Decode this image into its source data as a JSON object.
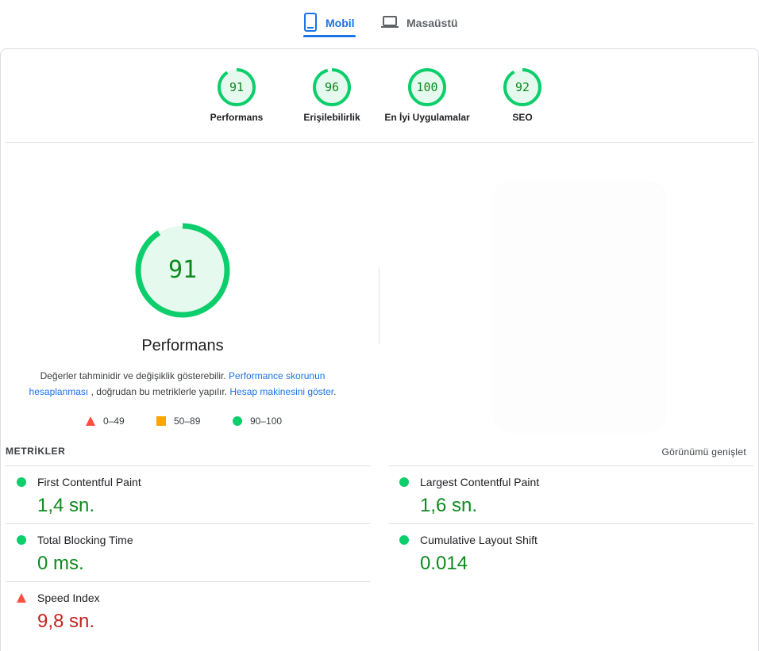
{
  "tabs": {
    "mobile": {
      "label": "Mobil",
      "icon": "mobile-phone-icon",
      "active": true
    },
    "desktop": {
      "label": "Masaüstü",
      "icon": "laptop-icon",
      "active": false
    }
  },
  "categories": [
    {
      "label": "Performans",
      "score": "91",
      "fraction": 0.91
    },
    {
      "label": "Erişilebilirlik",
      "score": "96",
      "fraction": 0.96
    },
    {
      "label": "En İyi Uygulamalar",
      "score": "100",
      "fraction": 1.0
    },
    {
      "label": "SEO",
      "score": "92",
      "fraction": 0.92
    }
  ],
  "main": {
    "score": "91",
    "fraction": 0.91,
    "title": "Performans",
    "desc_before": "Değerler tahminidir ve değişiklik gösterebilir.",
    "link1": "Performance skorunun hesaplanması",
    "desc_middle": ", doğrudan bu metriklerle yapılır.",
    "link2": "Hesap makinesini göster",
    "desc_end": "."
  },
  "legend": {
    "bad": "0–49",
    "average": "50–89",
    "good": "90–100"
  },
  "metrics": {
    "title": "METRİKLER",
    "expand": "Görünümü genişlet",
    "fcp": {
      "label": "First Contentful Paint",
      "value": "1,4 sn.",
      "status": "good"
    },
    "lcp": {
      "label": "Largest Contentful Paint",
      "value": "1,6 sn.",
      "status": "good"
    },
    "tbt": {
      "label": "Total Blocking Time",
      "value": "0 ms.",
      "status": "good"
    },
    "cls": {
      "label": "Cumulative Layout Shift",
      "value": "0.014",
      "status": "good"
    },
    "si": {
      "label": "Speed Index",
      "value": "9,8 sn.",
      "status": "bad"
    }
  },
  "colors": {
    "good": "#0cce6b",
    "good_text": "#0c8a1d",
    "good_bg": "#e6f9ee",
    "average": "#ffa400",
    "bad": "#ff4e42",
    "bad_text": "#c5221f",
    "accent": "#1a73e8"
  }
}
